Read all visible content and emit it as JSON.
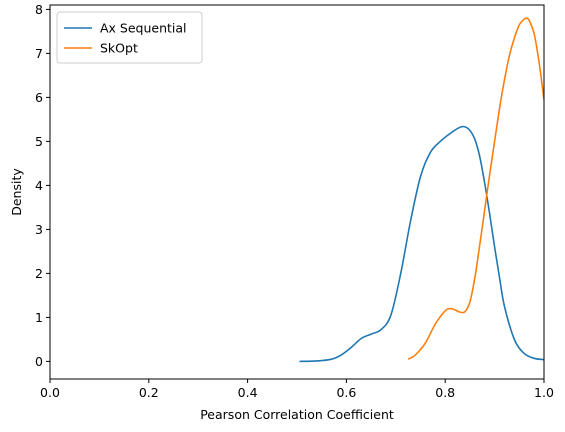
{
  "chart_data": {
    "type": "line",
    "title": "",
    "xlabel": "Pearson Correlation Coefficient",
    "ylabel": "Density",
    "xlim": [
      0.0,
      1.0
    ],
    "ylim": [
      -0.4,
      8.1
    ],
    "xticks": [
      "0.0",
      "0.2",
      "0.4",
      "0.6",
      "0.8",
      "1.0"
    ],
    "yticks": [
      "0",
      "1",
      "2",
      "3",
      "4",
      "5",
      "6",
      "7",
      "8"
    ],
    "grid": false,
    "legend_position": "top-left",
    "series": [
      {
        "name": "Ax Sequential",
        "color": "#1f77b4",
        "x": [
          0.505,
          0.54,
          0.57,
          0.59,
          0.61,
          0.63,
          0.65,
          0.67,
          0.69,
          0.71,
          0.73,
          0.75,
          0.77,
          0.79,
          0.81,
          0.83,
          0.84,
          0.85,
          0.86,
          0.87,
          0.88,
          0.89,
          0.9,
          0.91,
          0.92,
          0.94,
          0.96,
          0.98,
          1.0
        ],
        "y": [
          0.0,
          0.01,
          0.05,
          0.15,
          0.32,
          0.52,
          0.62,
          0.72,
          1.05,
          2.0,
          3.2,
          4.2,
          4.75,
          5.0,
          5.18,
          5.32,
          5.33,
          5.25,
          5.05,
          4.65,
          4.05,
          3.35,
          2.6,
          1.9,
          1.25,
          0.5,
          0.18,
          0.07,
          0.04
        ]
      },
      {
        "name": "SkOpt",
        "color": "#ff7f0e",
        "x": [
          0.725,
          0.74,
          0.76,
          0.78,
          0.8,
          0.81,
          0.82,
          0.83,
          0.84,
          0.85,
          0.86,
          0.87,
          0.88,
          0.89,
          0.9,
          0.91,
          0.92,
          0.93,
          0.94,
          0.95,
          0.96,
          0.965,
          0.97,
          0.98,
          0.99,
          1.0
        ],
        "y": [
          0.05,
          0.15,
          0.42,
          0.85,
          1.15,
          1.2,
          1.17,
          1.12,
          1.13,
          1.35,
          1.9,
          2.65,
          3.45,
          4.25,
          5.0,
          5.75,
          6.4,
          6.95,
          7.35,
          7.65,
          7.78,
          7.8,
          7.75,
          7.45,
          6.8,
          5.95
        ]
      }
    ]
  }
}
